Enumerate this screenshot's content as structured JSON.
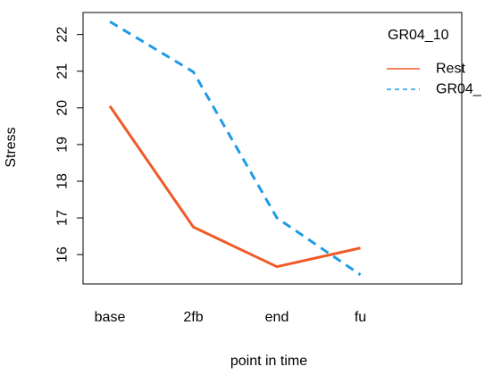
{
  "chart_data": {
    "type": "line",
    "title": "",
    "xlabel": "point in time",
    "ylabel": "Stress",
    "categories": [
      "base",
      "2fb",
      "end",
      "fu"
    ],
    "ylim": [
      15.2,
      22.6
    ],
    "yticks": [
      16,
      17,
      18,
      19,
      20,
      21,
      22
    ],
    "grid": false,
    "legend": {
      "title": "GR04_10",
      "placement": "top-right, clipped at plot edge",
      "entries": [
        "Rest",
        "GR04_"
      ]
    },
    "series": [
      {
        "name": "Rest",
        "color": "#f05a28",
        "dash": "solid",
        "values": [
          20.05,
          16.75,
          15.67,
          16.18
        ]
      },
      {
        "name": "GR04_",
        "color": "#1e9be6",
        "dash": "dashed",
        "values": [
          22.35,
          20.98,
          17.0,
          15.45
        ]
      }
    ]
  }
}
